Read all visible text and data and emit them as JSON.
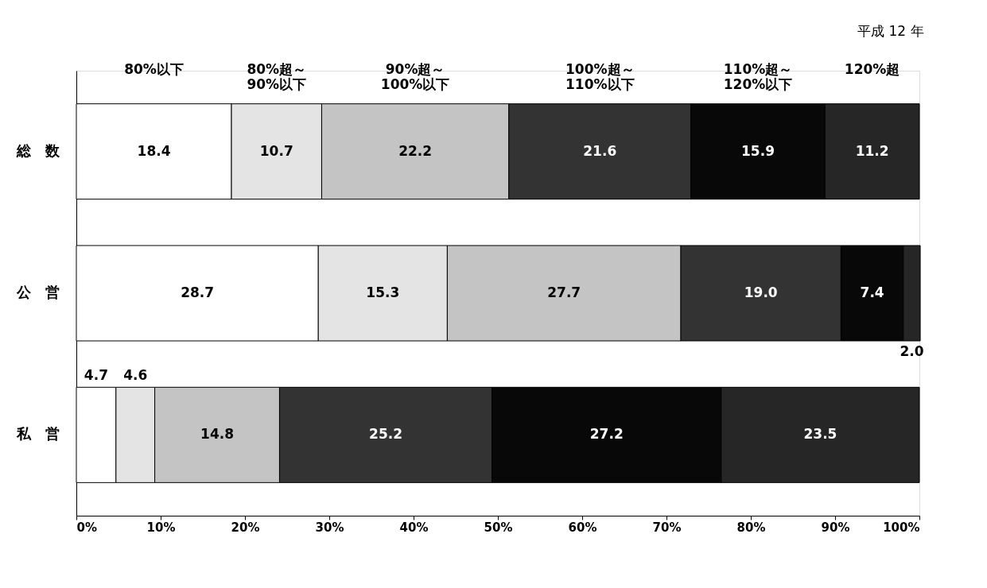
{
  "chart_data": {
    "type": "bar",
    "orientation": "horizontal",
    "stacked": true,
    "title": "平成 12 年",
    "categories": [
      "総　数",
      "公　営",
      "私　営"
    ],
    "series": [
      {
        "name": "80%以下",
        "color": "#ffffff",
        "values": [
          18.4,
          28.7,
          4.7
        ],
        "value_labels": [
          "18.4",
          "28.7",
          "4.7"
        ]
      },
      {
        "name": "80%超～\n90%以下",
        "color": "#e4e4e4",
        "values": [
          10.7,
          15.3,
          4.6
        ],
        "value_labels": [
          "10.7",
          "15.3",
          "4.6"
        ]
      },
      {
        "name": "90%超～\n100%以下",
        "color": "#c4c4c4",
        "values": [
          22.2,
          27.7,
          14.8
        ],
        "value_labels": [
          "22.2",
          "27.7",
          "14.8"
        ]
      },
      {
        "name": "100%超～\n110%以下",
        "color": "#333333",
        "values": [
          21.6,
          19.0,
          25.2
        ],
        "value_labels": [
          "21.6",
          "19.0",
          "25.2"
        ]
      },
      {
        "name": "110%超～\n120%以下",
        "color": "#080808",
        "values": [
          15.9,
          7.4,
          27.2
        ],
        "value_labels": [
          "15.9",
          "7.4",
          "27.2"
        ]
      },
      {
        "name": "120%超",
        "color": "#262626",
        "values": [
          11.2,
          2.0,
          23.5
        ],
        "value_labels": [
          "11.2",
          "2.0",
          "23.5"
        ]
      }
    ],
    "xlim": [
      0,
      100
    ],
    "xticks": [
      {
        "value": 0,
        "label": "0%"
      },
      {
        "value": 10,
        "label": "10%"
      },
      {
        "value": 20,
        "label": "20%"
      },
      {
        "value": 30,
        "label": "30%"
      },
      {
        "value": 40,
        "label": "40%"
      },
      {
        "value": 50,
        "label": "50%"
      },
      {
        "value": 60,
        "label": "60%"
      },
      {
        "value": 70,
        "label": "70%"
      },
      {
        "value": 80,
        "label": "80%"
      },
      {
        "value": 90,
        "label": "90%"
      },
      {
        "value": 100,
        "label": "100%"
      }
    ],
    "legend": "top",
    "grid": false
  }
}
